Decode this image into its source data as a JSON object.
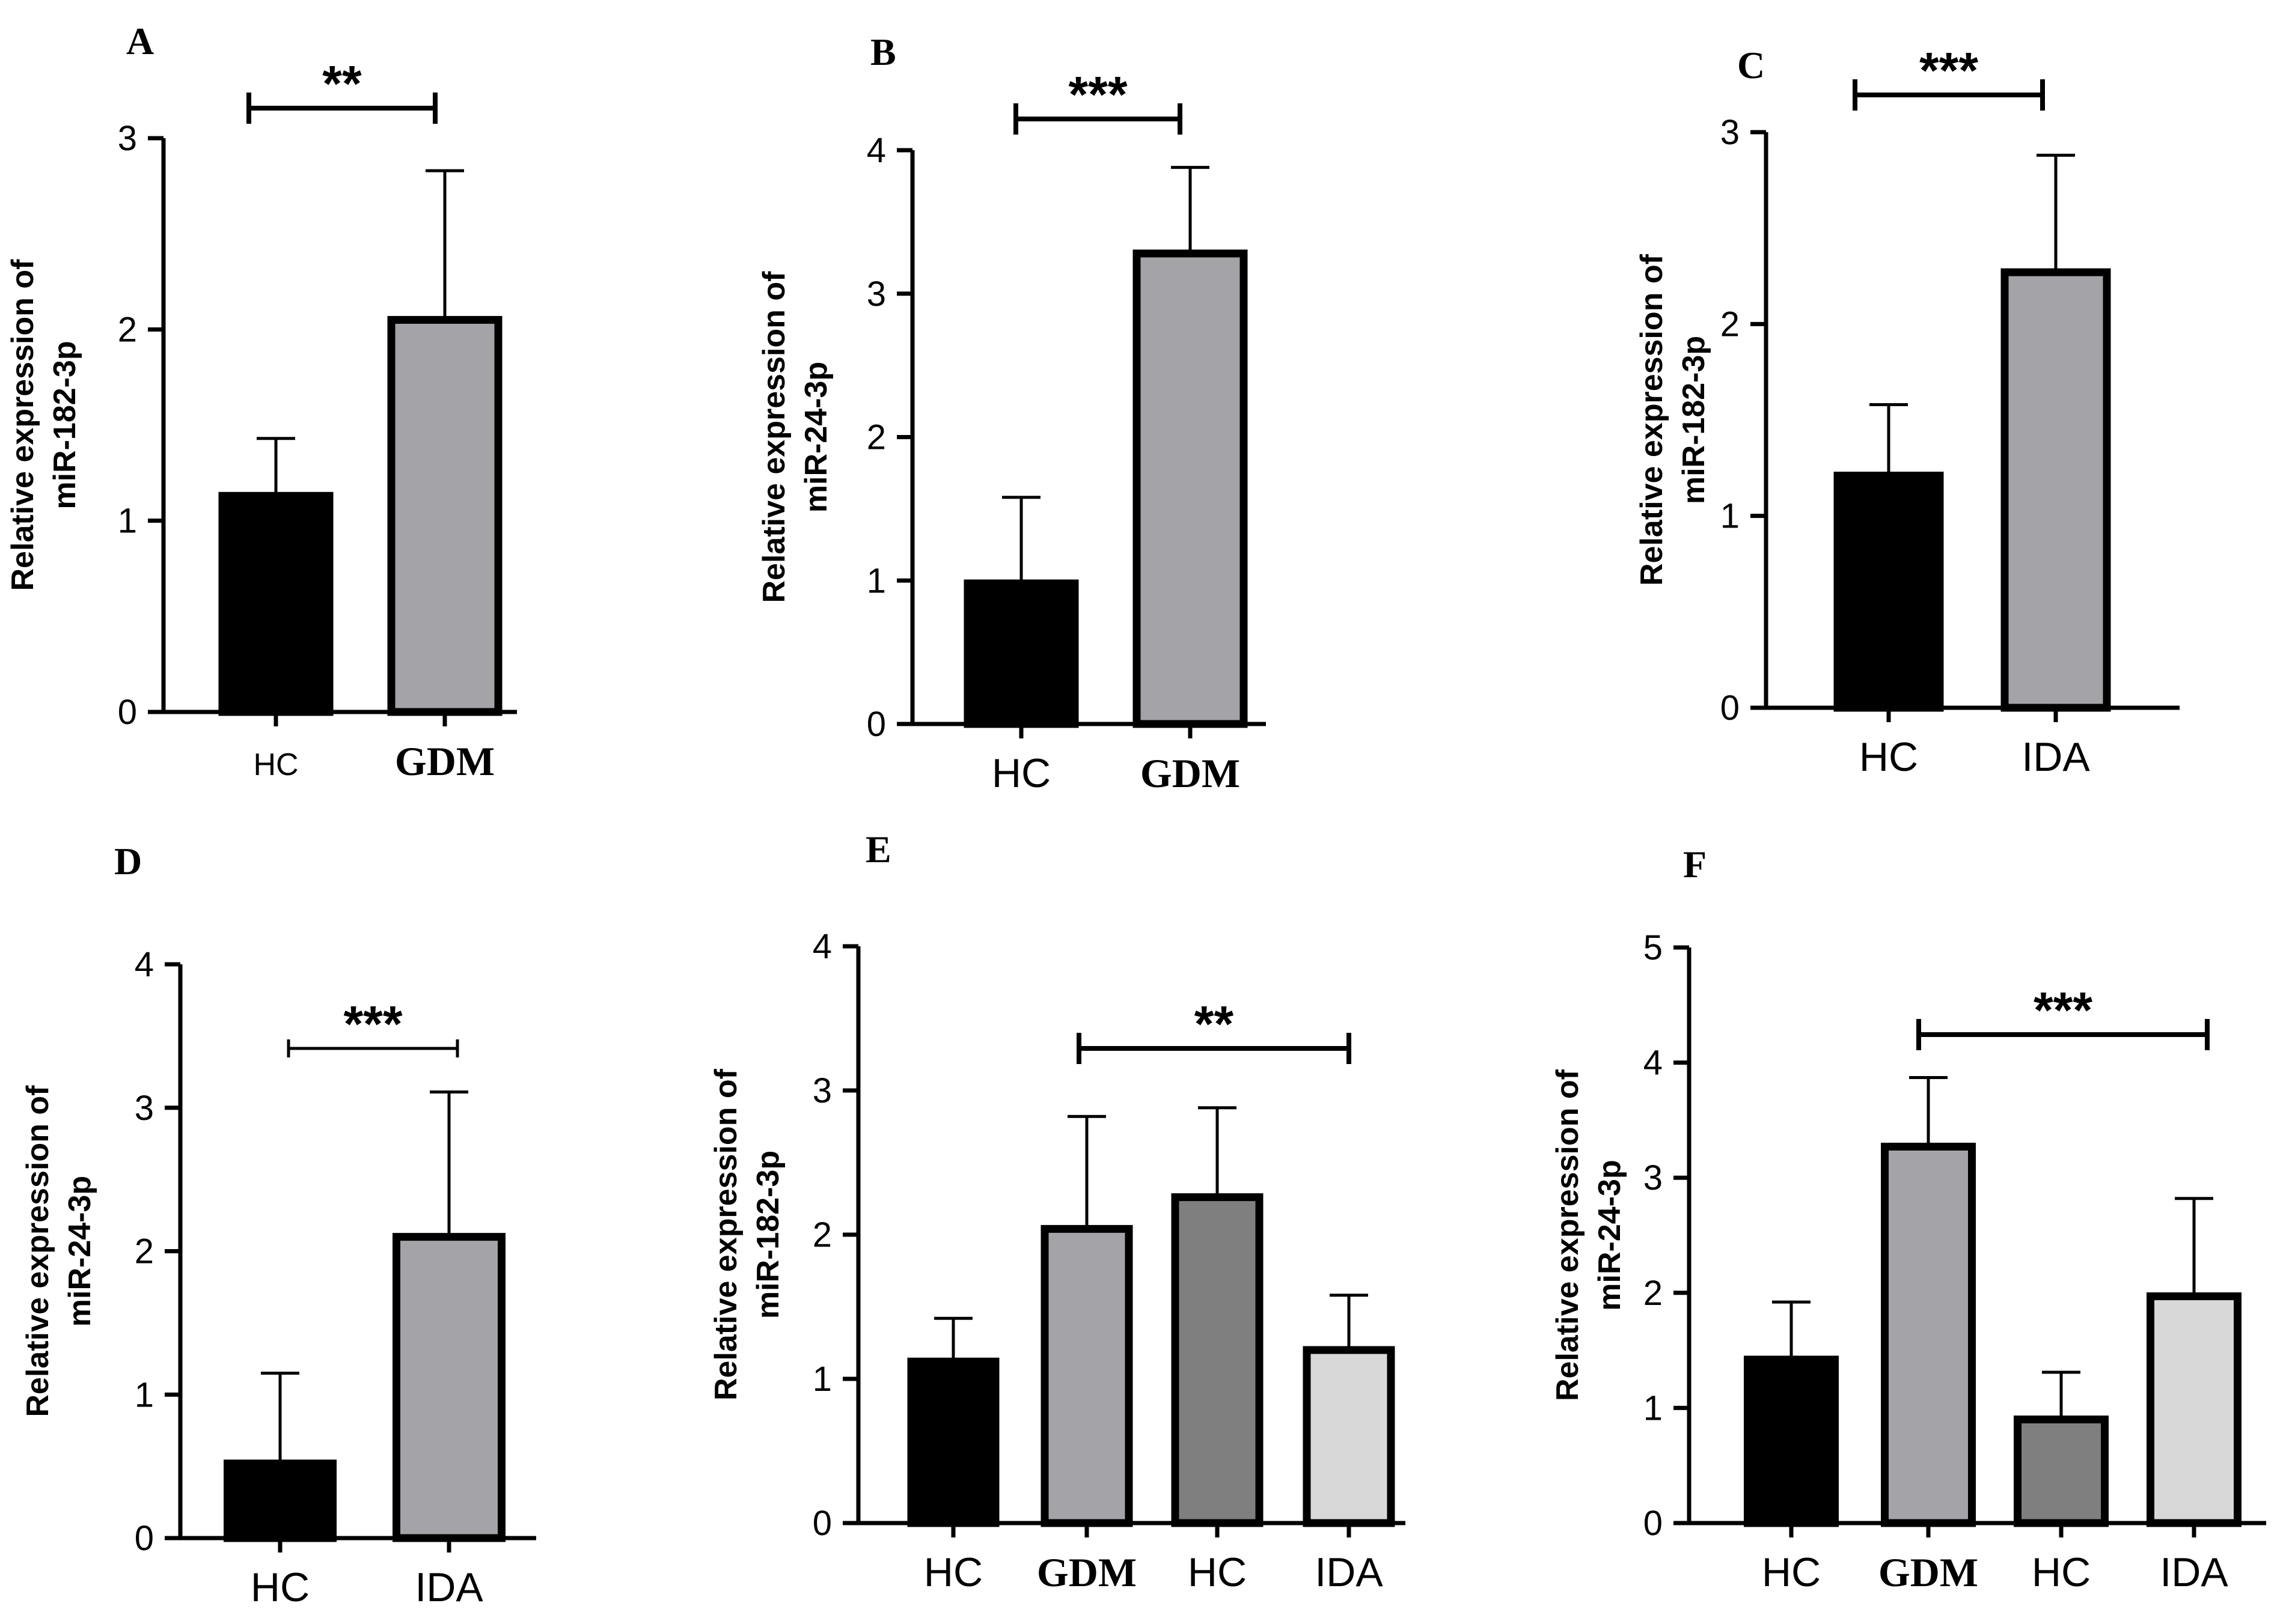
{
  "chart_data": [
    {
      "id": "A",
      "type": "bar",
      "panel_label": "A",
      "ylabel_lines": [
        "Relative expression of",
        "miR-182-3p"
      ],
      "ylim": [
        0,
        3
      ],
      "yticks": [
        "0",
        "1",
        "2",
        "3"
      ],
      "categories": [
        "HC",
        "GDM"
      ],
      "values": [
        1.13,
        2.05
      ],
      "errors": [
        0.3,
        0.78
      ],
      "colors": [
        "#000000",
        "#a4a4a8"
      ],
      "significance": {
        "from": 0,
        "to": 1,
        "label": "**"
      }
    },
    {
      "id": "B",
      "type": "bar",
      "panel_label": "B",
      "ylabel_lines": [
        "Relative expression of",
        "miR-24-3p"
      ],
      "ylim": [
        0,
        4
      ],
      "yticks": [
        "0",
        "1",
        "2",
        "3",
        "4"
      ],
      "categories": [
        "HC",
        "GDM"
      ],
      "values": [
        0.98,
        3.28
      ],
      "errors": [
        0.6,
        0.6
      ],
      "colors": [
        "#000000",
        "#a4a4a8"
      ],
      "significance": {
        "from": 0,
        "to": 1,
        "label": "***"
      }
    },
    {
      "id": "C",
      "type": "bar",
      "panel_label": "C",
      "ylabel_lines": [
        "Relative expression of",
        "miR-182-3p"
      ],
      "ylim": [
        0,
        3
      ],
      "yticks": [
        "0",
        "1",
        "2",
        "3"
      ],
      "categories": [
        "HC",
        "IDA"
      ],
      "values": [
        1.21,
        2.27
      ],
      "errors": [
        0.37,
        0.61
      ],
      "colors": [
        "#000000",
        "#a4a4a8"
      ],
      "significance": {
        "from": 0,
        "to": 1,
        "label": "***"
      }
    },
    {
      "id": "D",
      "type": "bar",
      "panel_label": "D",
      "ylabel_lines": [
        "Relative expression of",
        "miR-24-3p"
      ],
      "ylim": [
        0,
        4
      ],
      "yticks": [
        "0",
        "1",
        "2",
        "3",
        "4"
      ],
      "categories": [
        "HC",
        "IDA"
      ],
      "values": [
        0.52,
        2.1
      ],
      "errors": [
        0.63,
        1.01
      ],
      "colors": [
        "#000000",
        "#a4a4a8"
      ],
      "significance": {
        "from": 0,
        "to": 1,
        "label": "***"
      }
    },
    {
      "id": "E",
      "type": "bar",
      "panel_label": "E",
      "ylabel_lines": [
        "Relative expression of",
        "miR-182-3p"
      ],
      "ylim": [
        0,
        4
      ],
      "yticks": [
        "0",
        "1",
        "2",
        "3",
        "4"
      ],
      "categories": [
        "HC",
        "GDM",
        "HC",
        "IDA"
      ],
      "values": [
        1.12,
        2.04,
        2.26,
        1.2
      ],
      "errors": [
        0.3,
        0.78,
        0.62,
        0.38
      ],
      "colors": [
        "#000000",
        "#a4a4a8",
        "#7f7f7f",
        "#d8d8d8"
      ],
      "significance": {
        "from": 1,
        "to": 3,
        "label": "**"
      }
    },
    {
      "id": "F",
      "type": "bar",
      "panel_label": "F",
      "ylabel_lines": [
        "Relative expression of",
        "miR-24-3p"
      ],
      "ylim": [
        0,
        5
      ],
      "yticks": [
        "0",
        "1",
        "2",
        "3",
        "4",
        "5"
      ],
      "categories": [
        "HC",
        "GDM",
        "HC",
        "IDA"
      ],
      "values": [
        1.42,
        3.27,
        0.9,
        1.97
      ],
      "errors": [
        0.5,
        0.6,
        0.41,
        0.85
      ],
      "colors": [
        "#000000",
        "#a4a4a8",
        "#7f7f7f",
        "#d8d8d8"
      ],
      "significance": {
        "from": 1,
        "to": 3,
        "label": "***"
      }
    }
  ]
}
